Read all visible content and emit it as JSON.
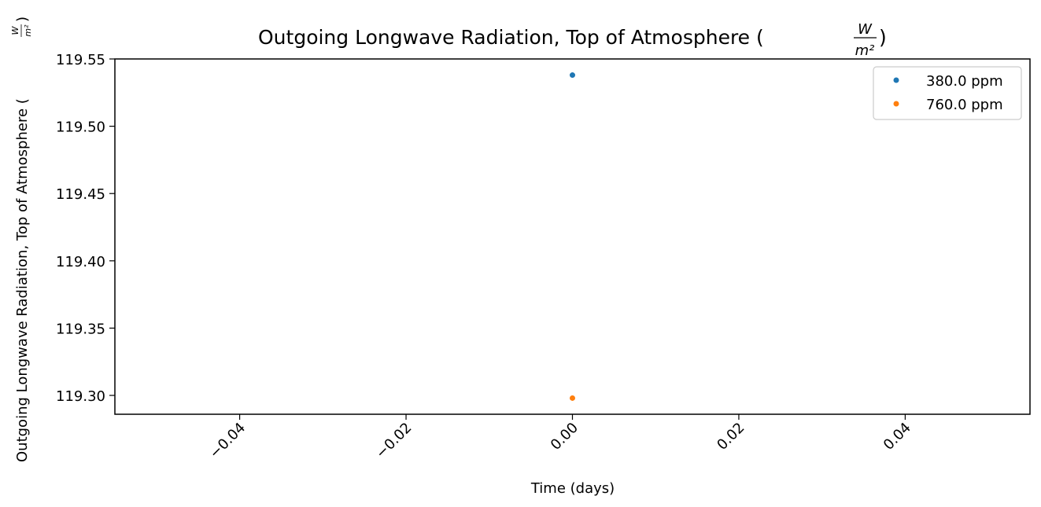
{
  "chart_data": {
    "type": "scatter",
    "title": "Outgoing Longwave Radiation, Top of Atmosphere (W/m²)",
    "title_main": "Outgoing Longwave Radiation, Top of Atmosphere (",
    "title_frac_num": "W",
    "title_frac_den": "m²",
    "title_close": ")",
    "xlabel": "Time (days)",
    "ylabel": "Outgoing Longwave Radiation, Top of Atmosphere (W/m²)",
    "ylabel_main": "Outgoing Longwave Radiation, Top of Atmosphere (",
    "ylabel_frac_num": "W",
    "ylabel_frac_den": "m²",
    "ylabel_close": ")",
    "xlim": [
      -0.055,
      0.055
    ],
    "ylim": [
      119.286,
      119.55
    ],
    "xticks": [
      -0.04,
      -0.02,
      0.0,
      0.02,
      0.04
    ],
    "xtick_labels": [
      "−0.04",
      "−0.02",
      "0.00",
      "0.02",
      "0.04"
    ],
    "yticks": [
      119.3,
      119.35,
      119.4,
      119.45,
      119.5,
      119.55
    ],
    "ytick_labels": [
      "119.30",
      "119.35",
      "119.40",
      "119.45",
      "119.50",
      "119.55"
    ],
    "grid": false,
    "legend_position": "top-right",
    "series": [
      {
        "name": "380.0 ppm",
        "color": "#1f77b4",
        "x": [
          0.0
        ],
        "y": [
          119.538
        ]
      },
      {
        "name": "760.0 ppm",
        "color": "#ff7f0e",
        "x": [
          0.0
        ],
        "y": [
          119.298
        ]
      }
    ]
  }
}
